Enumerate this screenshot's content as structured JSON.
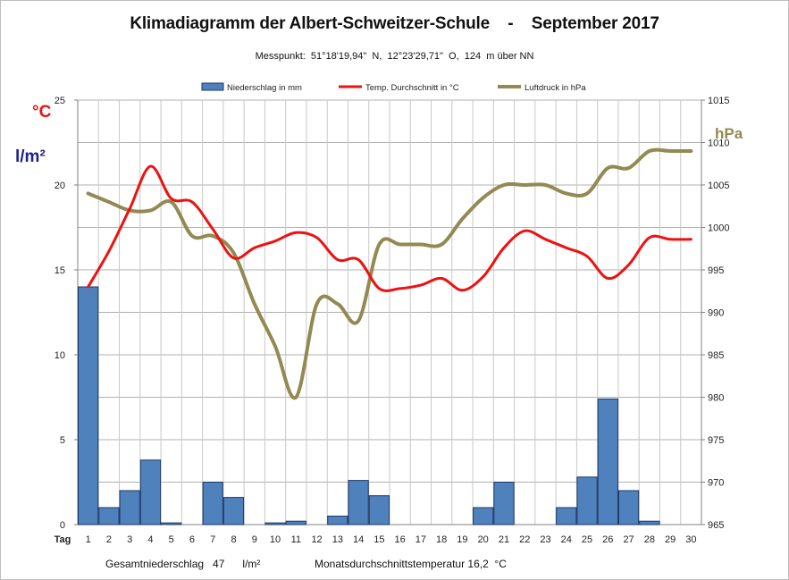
{
  "title": "Klimadiagramm der Albert-Schweitzer-Schule    -    September 2017",
  "subtitle": "Messpunkt:  51°18'19,94\"  N,  12°23'29,71\"  O,  124  m über NN",
  "units": {
    "celsius": "°C",
    "precip": "l/m²",
    "pressure": "hPa"
  },
  "x_axis_label": "Tag",
  "summary": {
    "precipitation": "Gesamtniederschlag   47      l/m²",
    "temperature": "Monatsdurchschnittstemperatur 16,2  °C"
  },
  "colors": {
    "precipitation": "#4f81bd",
    "temperature": "#ee1111",
    "pressure": "#938953",
    "celsius_label": "#ee1111",
    "precip_label": "#1f1f8f",
    "pressure_label": "#938953"
  },
  "chart_data": {
    "type": "bar+line",
    "title": "Klimadiagramm der Albert-Schweitzer-Schule - September 2017",
    "xlabel": "Tag",
    "categories": [
      "1",
      "2",
      "3",
      "4",
      "5",
      "6",
      "7",
      "8",
      "9",
      "10",
      "11",
      "12",
      "13",
      "14",
      "15",
      "16",
      "17",
      "18",
      "19",
      "20",
      "21",
      "22",
      "23",
      "24",
      "25",
      "26",
      "27",
      "28",
      "29",
      "30"
    ],
    "legend_position": "top",
    "grid": true,
    "y_left": {
      "ylim": [
        0,
        25
      ],
      "ticks": [
        0,
        5,
        10,
        15,
        20,
        25
      ]
    },
    "y_right": {
      "ylim": [
        965,
        1015
      ],
      "ticks": [
        965,
        970,
        975,
        980,
        985,
        990,
        995,
        1000,
        1005,
        1010,
        1015
      ]
    },
    "series": [
      {
        "name": "Niederschlag in mm",
        "type": "bar",
        "axis": "left",
        "values": [
          14,
          1,
          2,
          3.8,
          0.1,
          0,
          2.5,
          1.6,
          0,
          0.1,
          0.2,
          0,
          0.5,
          2.6,
          1.7,
          0,
          0,
          0,
          0,
          1,
          2.5,
          0,
          0,
          1,
          2.8,
          7.4,
          2,
          0.2,
          0,
          0
        ]
      },
      {
        "name": "Temp. Durchschnitt in °C",
        "type": "line",
        "axis": "left",
        "values": [
          14.0,
          16.1,
          18.6,
          21.1,
          19.2,
          19.0,
          17.4,
          15.7,
          16.3,
          16.7,
          17.2,
          16.9,
          15.6,
          15.6,
          13.9,
          13.9,
          14.1,
          14.5,
          13.8,
          14.6,
          16.3,
          17.3,
          16.8,
          16.3,
          15.8,
          14.5,
          15.3,
          16.9,
          16.8,
          16.8
        ]
      },
      {
        "name": "Luftdruck in hPa",
        "type": "line",
        "axis": "right",
        "values": [
          1004.0,
          1003.0,
          1002.0,
          1002.0,
          1003.0,
          999.0,
          999.0,
          997.0,
          991.0,
          986.0,
          980.0,
          991.0,
          991.0,
          989.0,
          998.0,
          998.0,
          998.0,
          998.0,
          1001.0,
          1003.5,
          1005.0,
          1005.0,
          1005.0,
          1004.0,
          1004.0,
          1007.0,
          1007.0,
          1009.0,
          1009.0,
          1009.0
        ]
      }
    ]
  }
}
